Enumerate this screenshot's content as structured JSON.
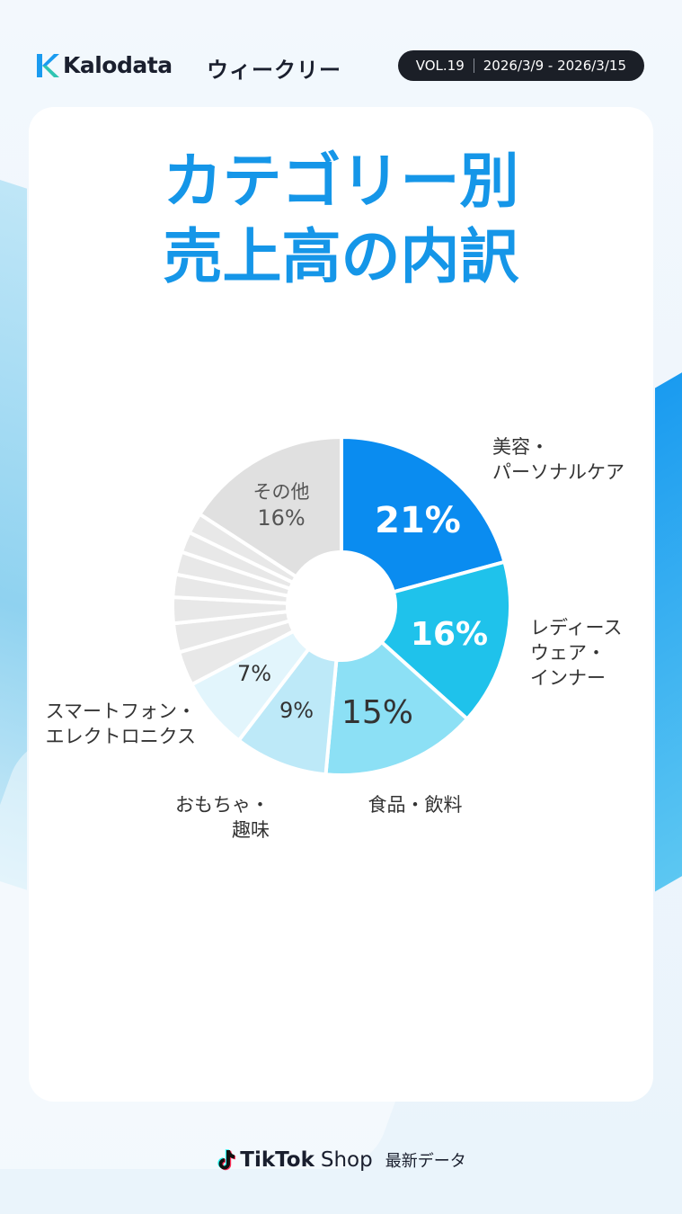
{
  "header": {
    "brand": "Kalodata",
    "series_title": "ウィークリー",
    "vol": "VOL.19",
    "date_range": "2026/3/9 - 2026/3/15"
  },
  "title": {
    "line1": "カテゴリー別",
    "line2": "売上高の内訳"
  },
  "chart_data": {
    "type": "pie",
    "donut": true,
    "unit": "%",
    "slices": [
      {
        "label": [
          "美容・",
          "パーソナルケア"
        ],
        "value": 21,
        "value_label": "21%",
        "color": "#0a8cf0",
        "text_color": "#ffffff"
      },
      {
        "label": [
          "レディース",
          "ウェア・",
          "インナー"
        ],
        "value": 16,
        "value_label": "16%",
        "color": "#1fc2eb",
        "text_color": "#ffffff"
      },
      {
        "label": [
          "食品・飲料"
        ],
        "value": 15,
        "value_label": "15%",
        "color": "#8ce0f5",
        "text_color": "#333333"
      },
      {
        "label": [
          "おもちゃ・",
          "趣味"
        ],
        "value": 9,
        "value_label": "9%",
        "color": "#bde9f8",
        "text_color": "#333333"
      },
      {
        "label": [
          "スマートフォン・",
          "エレクトロニクス"
        ],
        "value": 7,
        "value_label": "7%",
        "color": "#e2f5fc",
        "text_color": "#333333"
      },
      {
        "label": [],
        "value": 3.3,
        "value_label": "",
        "color": "#e8e8e8",
        "text_color": "#333333"
      },
      {
        "label": [],
        "value": 2.8,
        "value_label": "",
        "color": "#e8e8e8",
        "text_color": "#333333"
      },
      {
        "label": [],
        "value": 2.5,
        "value_label": "",
        "color": "#e8e8e8",
        "text_color": "#333333"
      },
      {
        "label": [],
        "value": 2.2,
        "value_label": "",
        "color": "#e8e8e8",
        "text_color": "#333333"
      },
      {
        "label": [],
        "value": 2.2,
        "value_label": "",
        "color": "#e8e8e8",
        "text_color": "#333333"
      },
      {
        "label": [],
        "value": 2.0,
        "value_label": "",
        "color": "#e8e8e8",
        "text_color": "#333333"
      },
      {
        "label": [],
        "value": 2.0,
        "value_label": "",
        "color": "#e8e8e8",
        "text_color": "#333333"
      },
      {
        "label": [
          "その他"
        ],
        "value": 16,
        "value_label": "16%",
        "color": "#e0e0e0",
        "text_color": "#555555"
      }
    ]
  },
  "footer": {
    "brand": "TikTok",
    "shop": "Shop",
    "subtitle": "最新データ"
  },
  "colors": {
    "accent": "#1596e8",
    "pill_bg": "#1b1f27"
  },
  "icons": [
    "kalodata-logo-icon",
    "tiktok-note-icon"
  ]
}
